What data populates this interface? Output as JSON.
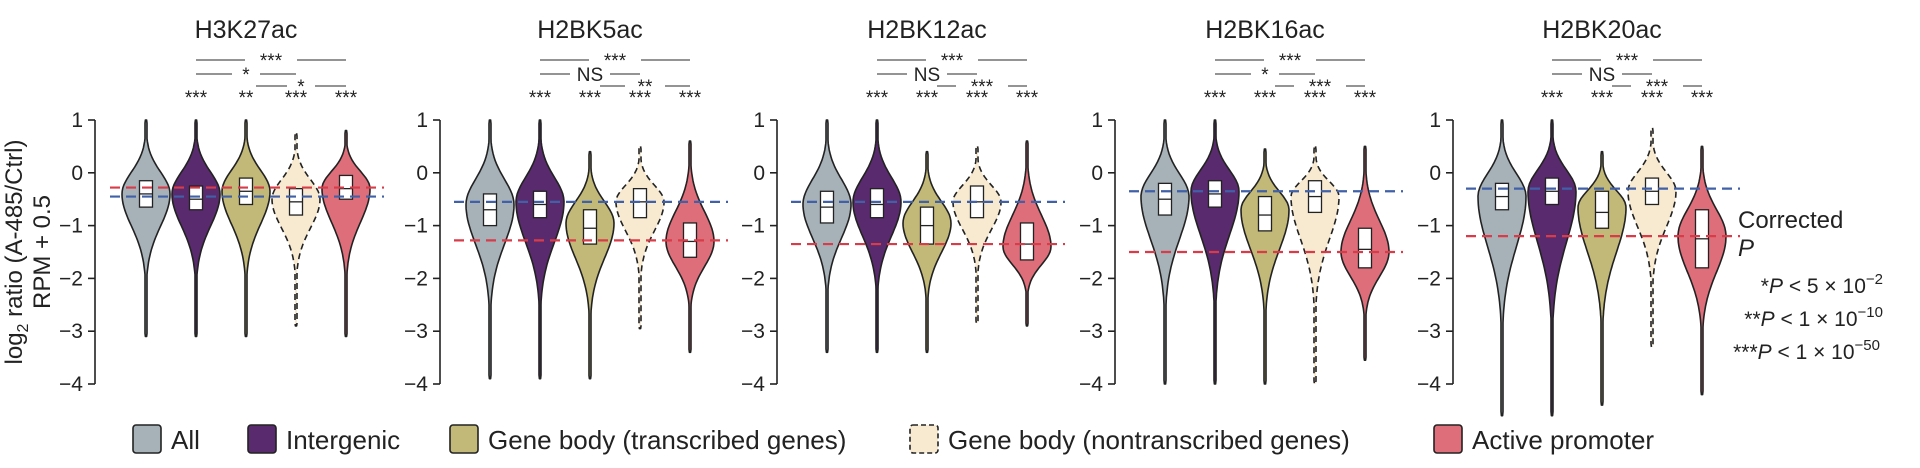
{
  "colors": {
    "All": "#a7b1b8",
    "Intergenic": "#5a2a6e",
    "Gene body (transcribed genes)": "#c2b877",
    "Gene body (nontranscribed genes)": "#f8ead1",
    "Active promoter": "#df6e7b",
    "ref_blue": "#4060a8",
    "ref_red": "#d93b48"
  },
  "chart_data": {
    "type": "violin",
    "ylabel_main": "log",
    "ylabel_sub": "2",
    "ylabel_rest": " ratio (A-485/Ctrl)",
    "ylabel_line2": "RPM + 0.5",
    "ylim": [
      -4,
      1
    ],
    "yticks": [
      "1",
      "0",
      "−1",
      "−2",
      "−3",
      "−4"
    ],
    "ytick_values": [
      1,
      0,
      -1,
      -2,
      -3,
      -4
    ],
    "categories": [
      "All",
      "Intergenic",
      "Gene body (transcribed genes)",
      "Gene body (nontranscribed genes)",
      "Active promoter"
    ],
    "panels": [
      {
        "title": "H3K27ac",
        "ref_blue": -0.45,
        "ref_red": -0.28,
        "violins": [
          {
            "min": -3.1,
            "max": 1.0,
            "q1": -0.65,
            "median": -0.4,
            "q3": -0.15,
            "mode": -0.4
          },
          {
            "min": -3.1,
            "max": 1.0,
            "q1": -0.7,
            "median": -0.5,
            "q3": -0.25,
            "mode": -0.4
          },
          {
            "min": -3.1,
            "max": 1.0,
            "q1": -0.6,
            "median": -0.35,
            "q3": -0.1,
            "mode": -0.35
          },
          {
            "min": -2.9,
            "max": 0.75,
            "q1": -0.8,
            "median": -0.55,
            "q3": -0.3,
            "mode": -0.5
          },
          {
            "min": -3.1,
            "max": 0.8,
            "q1": -0.5,
            "median": -0.3,
            "q3": -0.05,
            "mode": -0.3
          }
        ],
        "pairs": [
          "***",
          "**",
          "***",
          "***"
        ],
        "brackets": [
          "*",
          "***",
          "*"
        ]
      },
      {
        "title": "H2BK5ac",
        "ref_blue": -0.55,
        "ref_red": -1.28,
        "violins": [
          {
            "min": -3.9,
            "max": 1.0,
            "q1": -1.0,
            "median": -0.7,
            "q3": -0.4,
            "mode": -0.6
          },
          {
            "min": -3.9,
            "max": 1.0,
            "q1": -0.85,
            "median": -0.6,
            "q3": -0.35,
            "mode": -0.55
          },
          {
            "min": -3.9,
            "max": 0.4,
            "q1": -1.35,
            "median": -1.05,
            "q3": -0.7,
            "mode": -0.95
          },
          {
            "min": -2.95,
            "max": 0.5,
            "q1": -0.85,
            "median": -0.55,
            "q3": -0.3,
            "mode": -0.55
          },
          {
            "min": -3.4,
            "max": 0.6,
            "q1": -1.6,
            "median": -1.3,
            "q3": -0.95,
            "mode": -1.3
          }
        ],
        "pairs": [
          "***",
          "***",
          "***",
          "***"
        ],
        "brackets": [
          "NS",
          "***",
          "**"
        ]
      },
      {
        "title": "H2BK12ac",
        "ref_blue": -0.55,
        "ref_red": -1.35,
        "violins": [
          {
            "min": -3.4,
            "max": 1.0,
            "q1": -0.95,
            "median": -0.65,
            "q3": -0.35,
            "mode": -0.6
          },
          {
            "min": -3.4,
            "max": 1.0,
            "q1": -0.85,
            "median": -0.6,
            "q3": -0.3,
            "mode": -0.55
          },
          {
            "min": -3.4,
            "max": 0.4,
            "q1": -1.35,
            "median": -1.0,
            "q3": -0.65,
            "mode": -0.95
          },
          {
            "min": -2.85,
            "max": 0.5,
            "q1": -0.85,
            "median": -0.55,
            "q3": -0.25,
            "mode": -0.55
          },
          {
            "min": -2.9,
            "max": 0.6,
            "q1": -1.65,
            "median": -1.35,
            "q3": -0.95,
            "mode": -1.4
          }
        ],
        "pairs": [
          "***",
          "***",
          "***",
          "***"
        ],
        "brackets": [
          "NS",
          "***",
          "***"
        ]
      },
      {
        "title": "H2BK16ac",
        "ref_blue": -0.35,
        "ref_red": -1.5,
        "violins": [
          {
            "min": -4.0,
            "max": 1.0,
            "q1": -0.8,
            "median": -0.5,
            "q3": -0.2,
            "mode": -0.45
          },
          {
            "min": -4.0,
            "max": 1.0,
            "q1": -0.65,
            "median": -0.4,
            "q3": -0.15,
            "mode": -0.35
          },
          {
            "min": -4.0,
            "max": 0.45,
            "q1": -1.1,
            "median": -0.8,
            "q3": -0.45,
            "mode": -0.7
          },
          {
            "min": -4.0,
            "max": 0.5,
            "q1": -0.75,
            "median": -0.45,
            "q3": -0.15,
            "mode": -0.45
          },
          {
            "min": -3.55,
            "max": 0.5,
            "q1": -1.8,
            "median": -1.45,
            "q3": -1.05,
            "mode": -1.5
          }
        ],
        "pairs": [
          "***",
          "***",
          "***",
          "***"
        ],
        "brackets": [
          "*",
          "***",
          "***"
        ]
      },
      {
        "title": "H2BK20ac",
        "ref_blue": -0.3,
        "ref_red": -1.2,
        "violins": [
          {
            "min": -4.6,
            "max": 1.0,
            "q1": -0.7,
            "median": -0.45,
            "q3": -0.2,
            "mode": -0.45
          },
          {
            "min": -4.6,
            "max": 1.0,
            "q1": -0.6,
            "median": -0.35,
            "q3": -0.1,
            "mode": -0.35
          },
          {
            "min": -4.4,
            "max": 0.4,
            "q1": -1.05,
            "median": -0.75,
            "q3": -0.35,
            "mode": -0.65
          },
          {
            "min": -3.3,
            "max": 0.85,
            "q1": -0.6,
            "median": -0.35,
            "q3": -0.1,
            "mode": -0.35
          },
          {
            "min": -4.2,
            "max": 0.5,
            "q1": -1.8,
            "median": -1.25,
            "q3": -0.7,
            "mode": -1.2
          }
        ],
        "pairs": [
          "***",
          "***",
          "***",
          "***"
        ],
        "brackets": [
          "NS",
          "***",
          "***"
        ]
      }
    ],
    "legend": [
      "All",
      "Intergenic",
      "Gene body (transcribed genes)",
      "Gene body (nontranscribed genes)",
      "Active promoter"
    ],
    "pvalue_key": {
      "title_line1": "Corrected",
      "title_line2": "P",
      "entries": [
        {
          "stars": "*",
          "p": "P",
          "rel": " < 5 × 10",
          "exp": "−2"
        },
        {
          "stars": "**",
          "p": "P",
          "rel": " < 1 × 10",
          "exp": "−10"
        },
        {
          "stars": "***",
          "p": "P",
          "rel": " < 1 × 10",
          "exp": "−50"
        }
      ]
    }
  }
}
